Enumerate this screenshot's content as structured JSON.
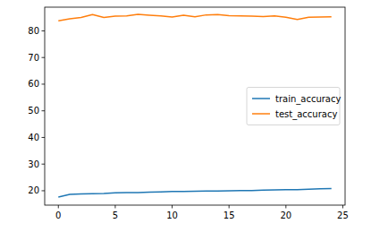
{
  "chart_data": {
    "type": "line",
    "x": [
      0,
      1,
      2,
      3,
      4,
      5,
      6,
      7,
      8,
      9,
      10,
      11,
      12,
      13,
      14,
      15,
      16,
      17,
      18,
      19,
      20,
      21,
      22,
      23,
      24
    ],
    "series": [
      {
        "name": "train_accuracy",
        "color": "#1f77b4",
        "values": [
          17.6,
          18.6,
          18.8,
          18.9,
          19.0,
          19.2,
          19.3,
          19.3,
          19.5,
          19.6,
          19.7,
          19.7,
          19.8,
          19.9,
          19.9,
          20.0,
          20.1,
          20.1,
          20.2,
          20.3,
          20.4,
          20.4,
          20.6,
          20.7,
          20.8
        ]
      },
      {
        "name": "test_accuracy",
        "color": "#ff7f0e",
        "values": [
          83.8,
          84.5,
          85.0,
          86.1,
          85.0,
          85.5,
          85.6,
          86.2,
          85.9,
          85.6,
          85.2,
          85.9,
          85.3,
          86.0,
          86.1,
          85.7,
          85.6,
          85.5,
          85.4,
          85.6,
          85.1,
          84.3,
          85.1,
          85.2,
          85.3
        ]
      }
    ],
    "xlim": [
      -1.2,
      25.2
    ],
    "xticks": [
      0,
      5,
      10,
      15,
      20,
      25
    ],
    "ylim": [
      14.6,
      88.9
    ],
    "yticks": [
      20,
      30,
      40,
      50,
      60,
      70,
      80
    ],
    "legend": "right",
    "grid": false
  }
}
